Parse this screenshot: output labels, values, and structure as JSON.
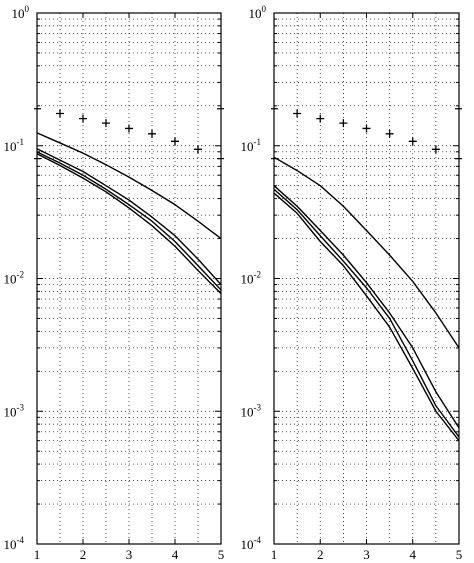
{
  "chart_data": [
    {
      "type": "line",
      "y_scale": "log",
      "xlim": [
        1,
        5
      ],
      "ylim": [
        0.0001,
        1
      ],
      "grid": true,
      "x_ticks": [
        "1",
        "2",
        "3",
        "4",
        "5"
      ],
      "y_ticks": [
        {
          "base": "10",
          "exp": "-4"
        },
        {
          "base": "10",
          "exp": "-3"
        },
        {
          "base": "10",
          "exp": "-2"
        },
        {
          "base": "10",
          "exp": "-1"
        },
        {
          "base": "10",
          "exp": "0"
        }
      ],
      "x": [
        1,
        1.5,
        2,
        2.5,
        3,
        3.5,
        4,
        4.5,
        5
      ],
      "series": [
        {
          "style": "solid",
          "values": [
            0.125,
            0.105,
            0.088,
            0.072,
            0.058,
            0.046,
            0.036,
            0.027,
            0.02
          ]
        },
        {
          "style": "solid",
          "values": [
            0.095,
            0.078,
            0.064,
            0.05,
            0.039,
            0.029,
            0.021,
            0.014,
            0.009
          ]
        },
        {
          "style": "solid",
          "values": [
            0.09,
            0.074,
            0.06,
            0.047,
            0.036,
            0.027,
            0.019,
            0.0125,
            0.0082
          ]
        },
        {
          "style": "solid",
          "values": [
            0.087,
            0.071,
            0.057,
            0.045,
            0.034,
            0.025,
            0.0175,
            0.0115,
            0.0077
          ]
        },
        {
          "style": "plus-markers",
          "values": [
            null,
            0.175,
            0.16,
            0.148,
            0.135,
            0.123,
            0.108,
            0.094,
            null
          ]
        }
      ],
      "reference_ticks": [
        0.19,
        0.08
      ]
    },
    {
      "type": "line",
      "y_scale": "log",
      "xlim": [
        1,
        5
      ],
      "ylim": [
        0.0001,
        1
      ],
      "grid": true,
      "x_ticks": [
        "1",
        "2",
        "3",
        "4",
        "5"
      ],
      "y_ticks": [
        {
          "base": "10",
          "exp": "-4"
        },
        {
          "base": "10",
          "exp": "-3"
        },
        {
          "base": "10",
          "exp": "-2"
        },
        {
          "base": "10",
          "exp": "-1"
        },
        {
          "base": "10",
          "exp": "0"
        }
      ],
      "x": [
        1,
        1.5,
        2,
        2.5,
        3,
        3.5,
        4,
        4.5,
        5
      ],
      "series": [
        {
          "style": "solid",
          "values": [
            0.082,
            0.065,
            0.05,
            0.035,
            0.023,
            0.015,
            0.0095,
            0.0055,
            0.003
          ]
        },
        {
          "style": "solid",
          "values": [
            0.05,
            0.035,
            0.023,
            0.015,
            0.0093,
            0.0055,
            0.003,
            0.0014,
            0.00075
          ]
        },
        {
          "style": "solid",
          "values": [
            0.047,
            0.033,
            0.021,
            0.0135,
            0.0085,
            0.005,
            0.0024,
            0.0011,
            0.00064
          ]
        },
        {
          "style": "solid",
          "values": [
            0.044,
            0.031,
            0.019,
            0.0125,
            0.0074,
            0.0043,
            0.0021,
            0.001,
            0.0006
          ]
        },
        {
          "style": "plus-markers",
          "values": [
            null,
            0.175,
            0.16,
            0.148,
            0.135,
            0.123,
            0.108,
            0.094,
            null
          ]
        }
      ],
      "reference_ticks": [
        0.19,
        0.08
      ]
    }
  ]
}
